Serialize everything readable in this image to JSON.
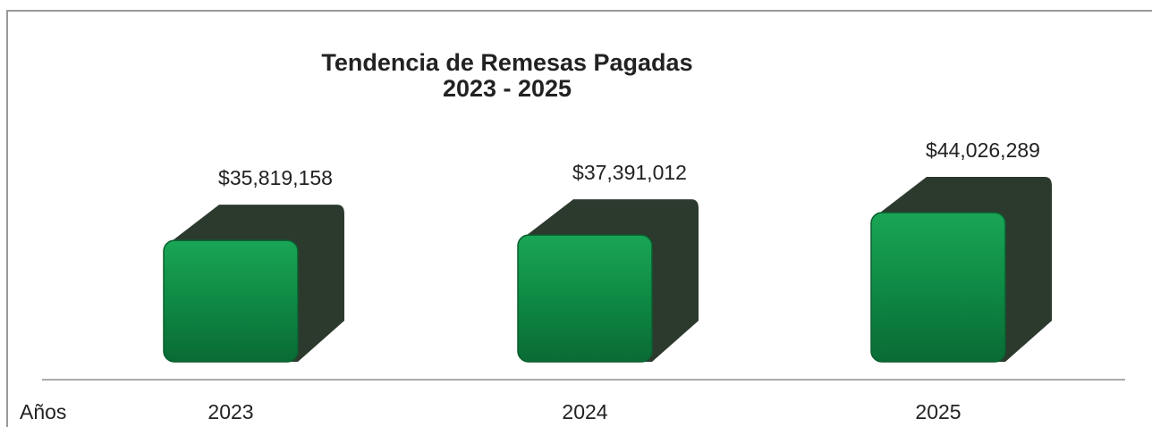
{
  "chart_data": {
    "type": "bar3d",
    "title": "Tendencia de Remesas Pagadas",
    "subtitle": "2023 - 2025",
    "x_label": "Años",
    "categories": [
      "2023",
      "2024",
      "2025"
    ],
    "values": [
      35819158,
      37391012,
      44026289
    ],
    "value_labels": [
      "$35,819,158",
      "$37,391,012",
      "$44,026,289"
    ],
    "color": "#0e8a44",
    "side_color": "#2c3a2e"
  }
}
